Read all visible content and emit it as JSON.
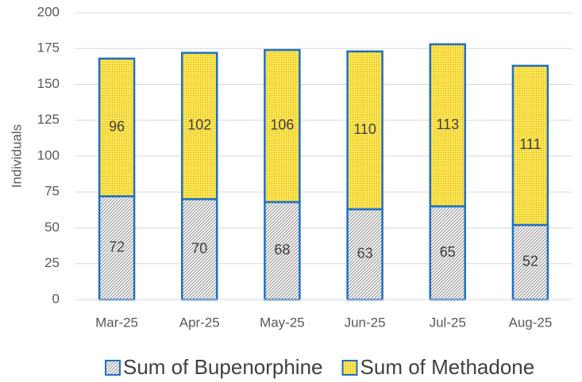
{
  "chart_data": {
    "type": "bar",
    "stacked": true,
    "y_label": "Individuals",
    "categories": [
      "Mar-25",
      "Apr-25",
      "May-25",
      "Jun-25",
      "Jul-25",
      "Aug-25"
    ],
    "series": [
      {
        "name": "Sum of Bupenorphine",
        "color": "#d9d9d9",
        "values": [
          72,
          70,
          68,
          63,
          65,
          52
        ]
      },
      {
        "name": "Sum of Methadone",
        "color": "#ffe44d",
        "values": [
          96,
          102,
          106,
          110,
          113,
          111
        ]
      }
    ],
    "edgecolor": "#1f6fc5",
    "ylim": [
      0,
      200
    ],
    "yticks": [
      0,
      25,
      50,
      75,
      100,
      125,
      150,
      175,
      200
    ],
    "grid": true,
    "legend": "bottom"
  }
}
